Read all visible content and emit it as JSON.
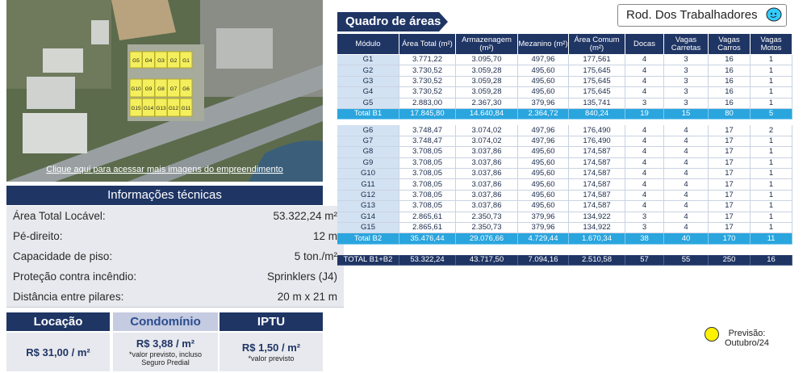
{
  "map": {
    "blocks": [
      "G5",
      "G4",
      "G3",
      "G2",
      "G1",
      "G10",
      "G9",
      "G8",
      "G7",
      "G6",
      "G15",
      "G14",
      "G13",
      "G12",
      "G11"
    ],
    "link": "Clique aqui para acessar mais imagens do empreendimento"
  },
  "tech_info": {
    "title": "Informações técnicas",
    "rows": [
      [
        "Área Total Locável:",
        "53.322,24 m²"
      ],
      [
        "Pé-direito:",
        "12 m"
      ],
      [
        "Capacidade de piso:",
        "5 ton./m²"
      ],
      [
        "Proteção contra incêndio:",
        "Sprinklers (J4)"
      ],
      [
        "Distância entre pilares:",
        "20 m x 21 m"
      ]
    ]
  },
  "costs": [
    {
      "header": "Locação",
      "value": "R$ 31,00 / m²"
    },
    {
      "header": "Condomínio",
      "value": "R$ 3,88 / m²",
      "note": "*valor previsto, incluso Seguro Predial"
    },
    {
      "header": "IPTU",
      "value": "R$ 1,50 / m²",
      "note": "*valor previsto"
    }
  ],
  "location": "Rod. Dos Trabalhadores",
  "table": {
    "title": "Quadro de áreas",
    "header": [
      "Módulo",
      "Área Total (m²)",
      "Armazenagem (m²)",
      "Mezanino (m²)",
      "Área Comum (m²)",
      "Docas",
      "Vagas Carretas",
      "Vagas Carros",
      "Vagas Motos"
    ],
    "groups": [
      {
        "rows": [
          [
            "G1",
            "3.771,22",
            "3.095,70",
            "497,96",
            "177,561",
            "4",
            "3",
            "16",
            "1"
          ],
          [
            "G2",
            "3.730,52",
            "3.059,28",
            "495,60",
            "175,645",
            "4",
            "3",
            "16",
            "1"
          ],
          [
            "G3",
            "3.730,52",
            "3.059,28",
            "495,60",
            "175,645",
            "4",
            "3",
            "16",
            "1"
          ],
          [
            "G4",
            "3.730,52",
            "3.059,28",
            "495,60",
            "175,645",
            "4",
            "3",
            "16",
            "1"
          ],
          [
            "G5",
            "2.883,00",
            "2.367,30",
            "379,96",
            "135,741",
            "3",
            "3",
            "16",
            "1"
          ]
        ],
        "total": [
          "Total B1",
          "17.845,80",
          "14.640,84",
          "2.364,72",
          "840,24",
          "19",
          "15",
          "80",
          "5"
        ]
      },
      {
        "rows": [
          [
            "G6",
            "3.748,47",
            "3.074,02",
            "497,96",
            "176,490",
            "4",
            "4",
            "17",
            "2"
          ],
          [
            "G7",
            "3.748,47",
            "3.074,02",
            "497,96",
            "176,490",
            "4",
            "4",
            "17",
            "1"
          ],
          [
            "G8",
            "3.708,05",
            "3.037,86",
            "495,60",
            "174,587",
            "4",
            "4",
            "17",
            "1"
          ],
          [
            "G9",
            "3.708,05",
            "3.037,86",
            "495,60",
            "174,587",
            "4",
            "4",
            "17",
            "1"
          ],
          [
            "G10",
            "3.708,05",
            "3.037,86",
            "495,60",
            "174,587",
            "4",
            "4",
            "17",
            "1"
          ],
          [
            "G11",
            "3.708,05",
            "3.037,86",
            "495,60",
            "174,587",
            "4",
            "4",
            "17",
            "1"
          ],
          [
            "G12",
            "3.708,05",
            "3.037,86",
            "495,60",
            "174,587",
            "4",
            "4",
            "17",
            "1"
          ],
          [
            "G13",
            "3.708,05",
            "3.037,86",
            "495,60",
            "174,587",
            "4",
            "4",
            "17",
            "1"
          ],
          [
            "G14",
            "2.865,61",
            "2.350,73",
            "379,96",
            "134,922",
            "3",
            "4",
            "17",
            "1"
          ],
          [
            "G15",
            "2.865,61",
            "2.350,73",
            "379,96",
            "134,922",
            "3",
            "4",
            "17",
            "1"
          ]
        ],
        "total": [
          "Total B2",
          "35.476,44",
          "29.076,66",
          "4.729,44",
          "1.670,34",
          "38",
          "40",
          "170",
          "11"
        ]
      }
    ],
    "grand_total": [
      "TOTAL B1+B2",
      "53.322,24",
      "43.717,50",
      "7.094,16",
      "2.510,58",
      "57",
      "55",
      "250",
      "16"
    ]
  },
  "legend": [
    "Previsão:",
    "Outubro/24"
  ]
}
